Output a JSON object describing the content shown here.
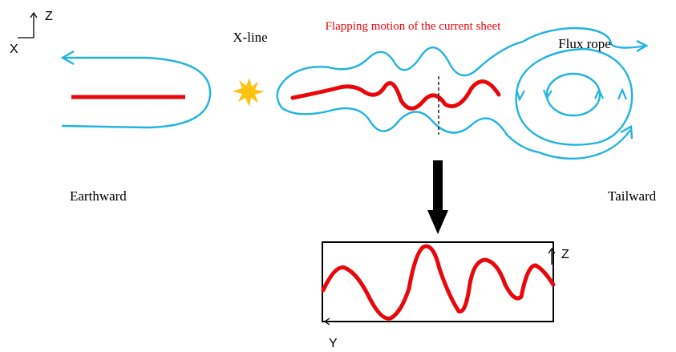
{
  "colors": {
    "field_line": "#1fb3e0",
    "current_sheet": "#e8070b",
    "x_line_star": "#ffc20e",
    "annotation": "#e8070b",
    "black": "#000000"
  },
  "axes_top": {
    "z": "Z",
    "x": "X"
  },
  "labels": {
    "x_line": "X-line",
    "flapping": "Flapping motion of the current sheet",
    "flux_rope": "Flux rope",
    "earthward": "Earthward",
    "tailward": "Tailward"
  },
  "inset_axes": {
    "z": "Z",
    "y": "Y"
  },
  "icons": [
    "x-line-star-icon",
    "down-arrow-icon",
    "axis-arrow-icon"
  ]
}
